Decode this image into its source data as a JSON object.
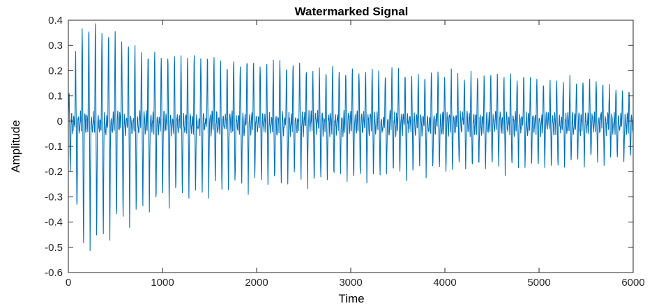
{
  "chart_data": {
    "type": "line",
    "title": "Watermarked Signal",
    "xlabel": "Time",
    "ylabel": "Amplitude",
    "xlim": [
      0,
      6000
    ],
    "ylim": [
      -0.6,
      0.4
    ],
    "xticks": [
      0,
      1000,
      2000,
      3000,
      4000,
      5000,
      6000
    ],
    "yticks": [
      -0.6,
      -0.5,
      -0.4,
      -0.3,
      -0.2,
      -0.1,
      0,
      0.1,
      0.2,
      0.3,
      0.4
    ],
    "xtick_labels": [
      "0",
      "1000",
      "2000",
      "3000",
      "4000",
      "5000",
      "6000"
    ],
    "ytick_labels": [
      "-0.6",
      "-0.5",
      "-0.4",
      "-0.3",
      "-0.2",
      "-0.1",
      "0",
      "0.1",
      "0.2",
      "0.3",
      "0.4"
    ],
    "grid": false,
    "line_color": "#0072BD",
    "series": [
      {
        "period": 70,
        "peak_envelope": {
          "x": [
            0,
            150,
            300,
            500,
            800,
            1200,
            1600,
            2000,
            2500,
            3000,
            3500,
            4000,
            4500,
            5000,
            5500,
            6000
          ],
          "y": [
            0.12,
            0.39,
            0.39,
            0.34,
            0.29,
            0.26,
            0.25,
            0.24,
            0.22,
            0.21,
            0.2,
            0.19,
            0.18,
            0.17,
            0.16,
            0.12
          ]
        },
        "trough_envelope": {
          "x": [
            0,
            150,
            300,
            500,
            800,
            1200,
            1600,
            2000,
            2500,
            3000,
            3500,
            4000,
            4500,
            5000,
            5500,
            6000
          ],
          "y": [
            -0.16,
            -0.55,
            -0.51,
            -0.45,
            -0.37,
            -0.32,
            -0.29,
            -0.27,
            -0.25,
            -0.24,
            -0.22,
            -0.21,
            -0.2,
            -0.19,
            -0.17,
            -0.16
          ]
        }
      }
    ]
  }
}
